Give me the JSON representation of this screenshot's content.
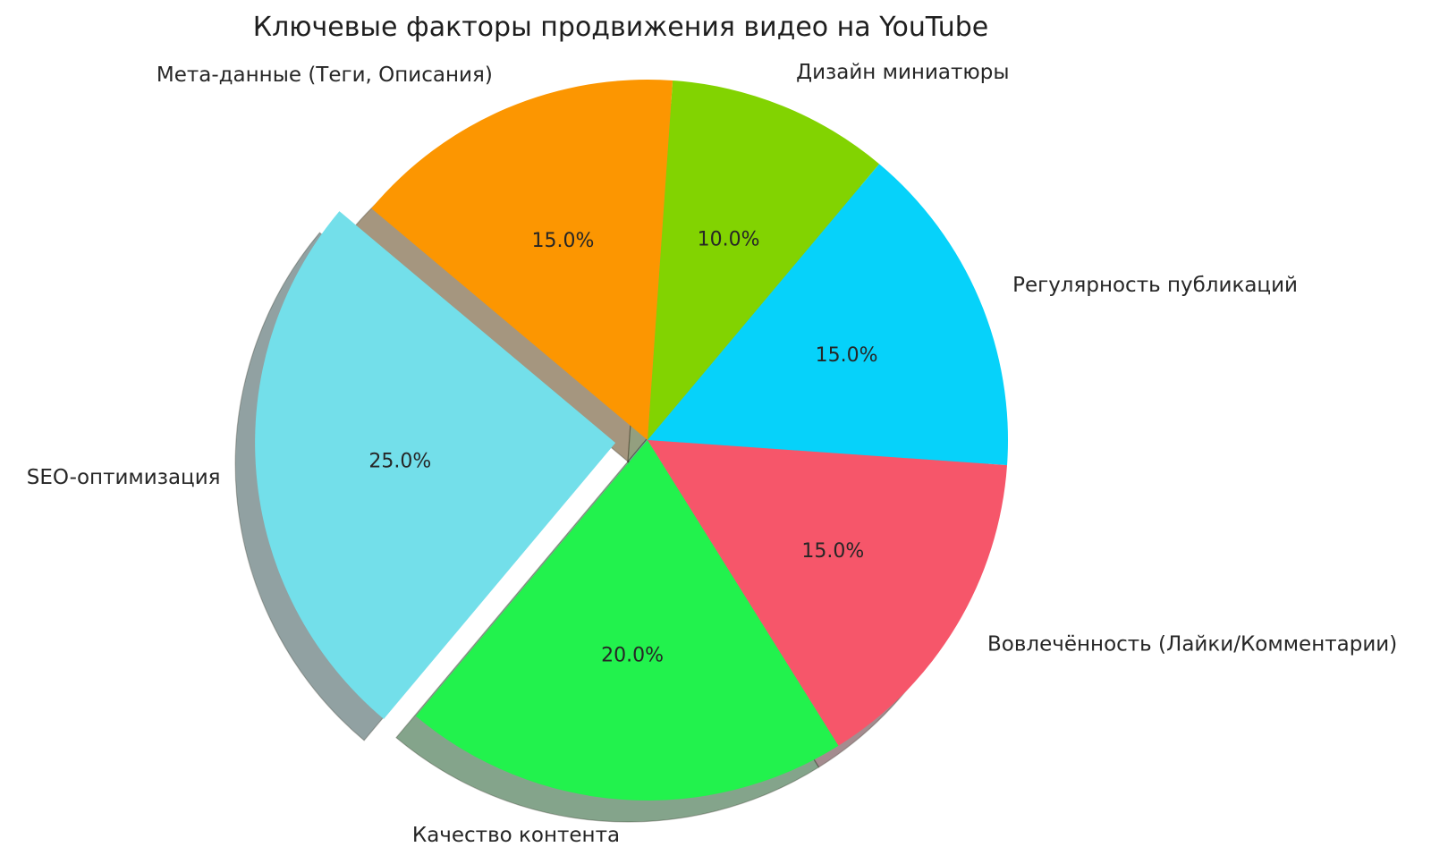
{
  "chart_data": {
    "type": "pie",
    "title": "Ключевые факторы продвижения видео на YouTube",
    "legend_position": "none",
    "text_color": "#262626",
    "start_angle_deg": -4,
    "direction": "counterclockwise",
    "shadow": true,
    "pctdistance": 0.6,
    "labeldistance": 1.1,
    "slices": [
      {
        "label": "Регулярность публикаций",
        "value": 15.0,
        "pct_label": "15.0%",
        "color": "#06D2FA",
        "exploded": false
      },
      {
        "label": "Дизайн миниатюры",
        "value": 10.0,
        "pct_label": "10.0%",
        "color": "#82D301",
        "exploded": false
      },
      {
        "label": "Мета-данные (Теги, Описания)",
        "value": 15.0,
        "pct_label": "15.0%",
        "color": "#FC9601",
        "exploded": false
      },
      {
        "label": "SEO-оптимизация",
        "value": 25.0,
        "pct_label": "25.0%",
        "color": "#73DFEA",
        "exploded": true
      },
      {
        "label": "Качество контента",
        "value": 20.0,
        "pct_label": "20.0%",
        "color": "#22F24D",
        "exploded": false
      },
      {
        "label": "Вовлечённость (Лайки/Комментарии)",
        "value": 15.0,
        "pct_label": "15.0%",
        "color": "#F6566A",
        "exploded": false
      }
    ]
  }
}
